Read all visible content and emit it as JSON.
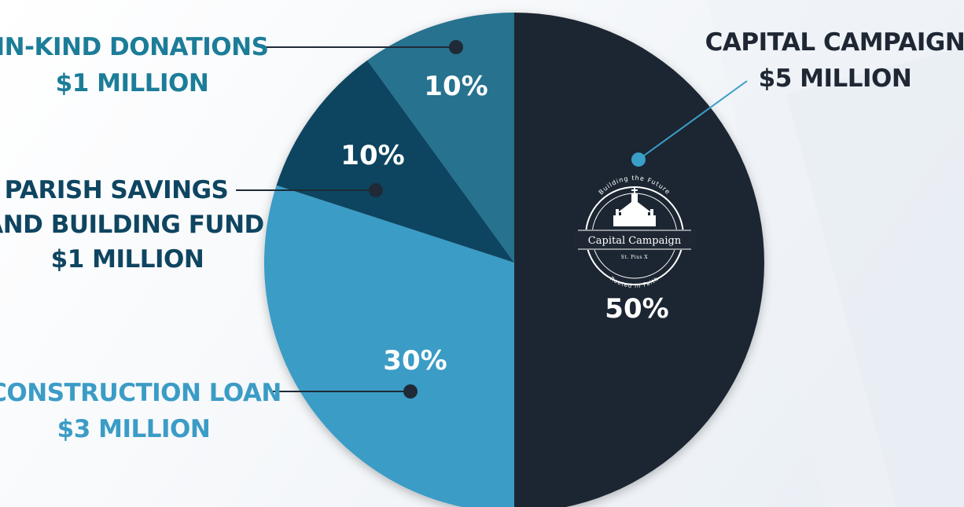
{
  "chart_data": {
    "type": "pie",
    "slices": [
      {
        "label": "Capital Campaign",
        "amount": "$5 Million",
        "value": 50,
        "percent_label": "50%",
        "color": "#1e2733"
      },
      {
        "label": "Construction Loan",
        "amount": "$3 Million",
        "value": 30,
        "percent_label": "30%",
        "color": "#3b9cc6"
      },
      {
        "label": "Parish Savings and Building Fund",
        "amount": "$1 Million",
        "value": 10,
        "percent_label": "10%",
        "color": "#0e4561"
      },
      {
        "label": "In-Kind Donations",
        "amount": "$1 Million",
        "value": 10,
        "percent_label": "10%",
        "color": "#28728f"
      }
    ]
  },
  "callouts": {
    "capital_campaign": {
      "line1": "Capital Campaign",
      "line2": "$5 Million",
      "color": "#1e2733"
    },
    "in_kind": {
      "line1": "In-Kind Donations",
      "line2": "$1 Million",
      "color": "#1c7d99"
    },
    "parish_savings": {
      "line1": "Parish Savings",
      "line2": "and Building Fund",
      "line3": "$1 Million",
      "color": "#0e4561"
    },
    "construction_loan": {
      "line1": "Construction Loan",
      "line2": "$3 Million",
      "color": "#3b9cc6"
    }
  },
  "logo": {
    "arc_top": "Building the Future",
    "name": "Capital Campaign",
    "sub": "St. Pius X",
    "arc_bottom": "Rooted in Faith"
  }
}
